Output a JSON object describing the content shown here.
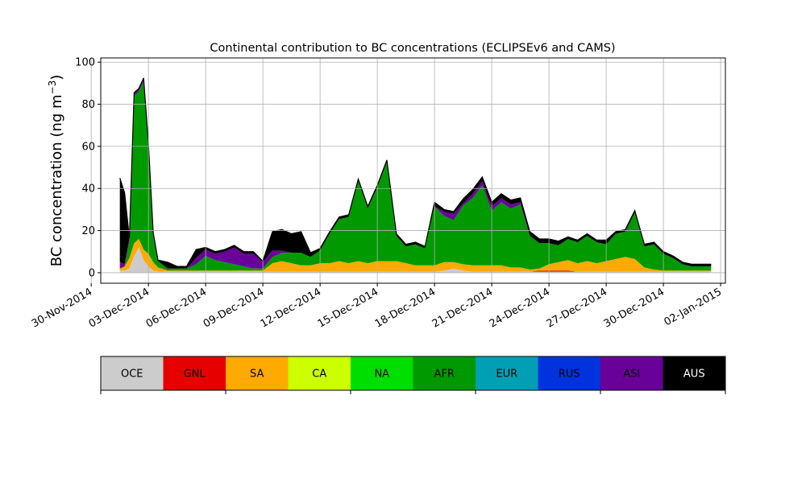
{
  "chart_data": {
    "type": "area",
    "stacked": true,
    "title": "Continental contribution to BC concentrations (ECLIPSEv6 and CAMS)",
    "xlabel": "",
    "ylabel": "BC concentration (ng m",
    "ylabel_sup": "−3",
    "ylabel_close": ")",
    "xlim": [
      "2014-11-30T12:00",
      "2015-01-02T06:00"
    ],
    "ylim": [
      -5,
      102
    ],
    "grid": true,
    "xticks": [
      {
        "date": "2014-11-30",
        "label": "30-Nov-2014"
      },
      {
        "date": "2014-12-03",
        "label": "03-Dec-2014"
      },
      {
        "date": "2014-12-06",
        "label": "06-Dec-2014"
      },
      {
        "date": "2014-12-09",
        "label": "09-Dec-2014"
      },
      {
        "date": "2014-12-12",
        "label": "12-Dec-2014"
      },
      {
        "date": "2014-12-15",
        "label": "15-Dec-2014"
      },
      {
        "date": "2014-12-18",
        "label": "18-Dec-2014"
      },
      {
        "date": "2014-12-21",
        "label": "21-Dec-2014"
      },
      {
        "date": "2014-12-24",
        "label": "24-Dec-2014"
      },
      {
        "date": "2014-12-27",
        "label": "27-Dec-2014"
      },
      {
        "date": "2014-12-30",
        "label": "30-Dec-2014"
      },
      {
        "date": "2015-01-02",
        "label": "02-Jan-2015"
      }
    ],
    "yticks": [
      0,
      20,
      40,
      60,
      80,
      100
    ],
    "x": [
      "2014-12-01T12:00",
      "2014-12-01T18:00",
      "2014-12-02T00:00",
      "2014-12-02T06:00",
      "2014-12-02T12:00",
      "2014-12-02T18:00",
      "2014-12-03T00:00",
      "2014-12-03T06:00",
      "2014-12-03T12:00",
      "2014-12-04T00:00",
      "2014-12-04T12:00",
      "2014-12-05T00:00",
      "2014-12-05T12:00",
      "2014-12-06T00:00",
      "2014-12-06T12:00",
      "2014-12-07T00:00",
      "2014-12-07T12:00",
      "2014-12-08T00:00",
      "2014-12-08T12:00",
      "2014-12-09T00:00",
      "2014-12-09T12:00",
      "2014-12-10T00:00",
      "2014-12-10T12:00",
      "2014-12-11T00:00",
      "2014-12-11T12:00",
      "2014-12-12T00:00",
      "2014-12-12T12:00",
      "2014-12-13T00:00",
      "2014-12-13T12:00",
      "2014-12-14T00:00",
      "2014-12-14T12:00",
      "2014-12-15T00:00",
      "2014-12-15T12:00",
      "2014-12-16T00:00",
      "2014-12-16T12:00",
      "2014-12-17T00:00",
      "2014-12-17T12:00",
      "2014-12-18T00:00",
      "2014-12-18T12:00",
      "2014-12-19T00:00",
      "2014-12-19T12:00",
      "2014-12-20T00:00",
      "2014-12-20T12:00",
      "2014-12-21T00:00",
      "2014-12-21T12:00",
      "2014-12-22T00:00",
      "2014-12-22T12:00",
      "2014-12-23T00:00",
      "2014-12-23T12:00",
      "2014-12-24T00:00",
      "2014-12-24T12:00",
      "2014-12-25T00:00",
      "2014-12-25T12:00",
      "2014-12-26T00:00",
      "2014-12-26T12:00",
      "2014-12-27T00:00",
      "2014-12-27T12:00",
      "2014-12-28T00:00",
      "2014-12-28T12:00",
      "2014-12-29T00:00",
      "2014-12-29T12:00",
      "2014-12-30T00:00",
      "2014-12-30T12:00",
      "2014-12-31T00:00",
      "2014-12-31T12:00",
      "2015-01-01T00:00",
      "2015-01-01T12:00"
    ],
    "series": [
      {
        "name": "OCE",
        "color": "#cccccc",
        "values": [
          1,
          1,
          2,
          8,
          12,
          6,
          3,
          1,
          0.5,
          0.5,
          0.5,
          0.5,
          0.5,
          0.5,
          0.5,
          0.5,
          0.5,
          0.5,
          0.5,
          0.5,
          0.5,
          0.5,
          0.5,
          0.5,
          0.5,
          0.5,
          0.5,
          0.5,
          0.5,
          0.5,
          0.5,
          0.5,
          0.5,
          0.5,
          0.5,
          0.5,
          0.5,
          0.5,
          1,
          2,
          1,
          0.5,
          0.5,
          0.5,
          0.5,
          0.5,
          0.5,
          0.5,
          0.5,
          0.5,
          0.5,
          0.5,
          0.5,
          0.5,
          0.5,
          0.5,
          0.5,
          0.5,
          0.5,
          0.5,
          0.5,
          0.5,
          0.5,
          0.5,
          0.5,
          0.5,
          0.5
        ]
      },
      {
        "name": "GNL",
        "color": "#e60000",
        "values": [
          0,
          0,
          0,
          0,
          0,
          0,
          0,
          0,
          0,
          0,
          0,
          0,
          0,
          0,
          0,
          0,
          0,
          0,
          0,
          0,
          0,
          0,
          0,
          0,
          0,
          0,
          0,
          0,
          0,
          0,
          0,
          0,
          0,
          0,
          0,
          0,
          0,
          0,
          0,
          0,
          0,
          0,
          0,
          0,
          0,
          0,
          0,
          0,
          0.5,
          0.5,
          0.5,
          0.5,
          0,
          0,
          0,
          0,
          0,
          0,
          0,
          0,
          0,
          0,
          0,
          0,
          0,
          0,
          0
        ]
      },
      {
        "name": "SA",
        "color": "#ffaa00",
        "values": [
          1,
          2,
          5,
          6,
          4,
          5,
          6,
          4,
          2,
          0.5,
          0.5,
          0.5,
          0.5,
          0.5,
          0.5,
          0.5,
          0.5,
          0.5,
          0.5,
          0.5,
          4,
          5,
          4,
          3,
          3,
          4,
          4,
          5,
          4,
          5,
          4,
          5,
          5,
          5,
          4,
          3,
          3,
          3,
          4,
          3,
          3,
          3,
          3,
          3,
          3,
          2,
          2,
          1,
          1,
          3,
          4,
          5,
          4,
          5,
          4,
          5,
          6,
          7,
          6,
          2,
          1,
          0.5,
          0.5,
          0.5,
          0.5,
          0.5,
          0.5
        ]
      },
      {
        "name": "CA",
        "color": "#ccff00",
        "values": [
          0,
          0,
          0,
          0,
          0,
          0,
          0,
          0,
          0,
          0,
          0,
          0,
          0,
          0,
          0,
          0,
          0,
          0,
          0,
          0,
          0,
          0,
          0,
          0,
          0,
          0,
          0,
          0,
          0,
          0,
          0,
          0,
          0,
          0,
          0,
          0,
          0,
          0,
          0,
          0,
          0,
          0,
          0,
          0,
          0,
          0,
          0,
          0,
          0,
          0,
          0,
          0,
          0,
          0,
          0,
          0,
          0,
          0,
          0,
          0,
          0,
          0,
          0,
          0,
          0,
          0,
          0
        ]
      },
      {
        "name": "NA",
        "color": "#00dd00",
        "values": [
          0,
          0,
          0,
          0,
          0,
          0,
          0,
          0,
          0,
          0,
          0,
          0,
          0,
          0,
          0,
          0,
          0,
          0,
          0,
          0,
          0,
          0,
          0,
          0,
          0,
          0,
          0,
          0,
          0,
          0,
          0,
          0,
          0,
          0,
          0,
          0,
          0,
          0,
          0,
          0,
          0,
          0,
          0,
          0,
          0,
          0,
          0,
          0,
          0,
          0,
          0,
          0,
          0,
          0,
          0,
          0,
          0,
          0,
          0,
          0,
          0,
          0,
          0,
          0,
          0,
          0,
          0
        ]
      },
      {
        "name": "AFR",
        "color": "#009900",
        "values": [
          0,
          0,
          8,
          70,
          70,
          80,
          50,
          12,
          3,
          1,
          1,
          1,
          3,
          7,
          5,
          4,
          3,
          2,
          1,
          1,
          3,
          4,
          5,
          6,
          4,
          6,
          14,
          20,
          22,
          38,
          26,
          35,
          47,
          12,
          8,
          10,
          8,
          28,
          22,
          20,
          28,
          32,
          38,
          26,
          30,
          28,
          30,
          16,
          12,
          10,
          8,
          10,
          10,
          12,
          10,
          8,
          12,
          12,
          22,
          10,
          12,
          8,
          6,
          3,
          2,
          2,
          2
        ]
      },
      {
        "name": "EUR",
        "color": "#00a0b4",
        "values": [
          0,
          0,
          0,
          0,
          0,
          0,
          0,
          0,
          0,
          0,
          0,
          0,
          0,
          0,
          0,
          0,
          0,
          0,
          0,
          0,
          0,
          0,
          0,
          0,
          0,
          0,
          0,
          0,
          0,
          0,
          0,
          0,
          0,
          0,
          0,
          0,
          0,
          0,
          0,
          0,
          0,
          0,
          0,
          0,
          0,
          0,
          0,
          0,
          0,
          0,
          0,
          0,
          0,
          0,
          0,
          0,
          0,
          0,
          0,
          0,
          0,
          0,
          0,
          0,
          0,
          0,
          0
        ]
      },
      {
        "name": "RUS",
        "color": "#0033dd",
        "values": [
          0,
          0,
          0,
          0,
          0,
          0,
          0,
          0,
          0,
          0,
          0,
          0,
          0,
          0,
          0,
          0,
          0,
          0,
          0,
          0,
          0,
          0,
          0,
          0,
          0,
          0,
          0,
          0,
          0,
          0,
          0,
          0,
          0,
          0,
          0,
          0,
          0,
          0,
          0,
          0,
          0,
          0,
          0,
          0,
          0,
          0,
          0,
          0,
          0,
          0,
          0,
          0,
          0,
          0,
          0,
          0,
          0,
          0,
          0,
          0,
          0,
          0,
          0,
          0,
          0,
          0,
          0
        ]
      },
      {
        "name": "ASI",
        "color": "#6a0099",
        "values": [
          3,
          1,
          1,
          1,
          1,
          1,
          1,
          1,
          0,
          0,
          0,
          0,
          3,
          3,
          3,
          5,
          8,
          6,
          7,
          3,
          3,
          1,
          0,
          0,
          0,
          0,
          0,
          0,
          0,
          0,
          0,
          0,
          0,
          0,
          0,
          0,
          0,
          0,
          2,
          3,
          1,
          2,
          2,
          2,
          2,
          2,
          1,
          0,
          0,
          0,
          0,
          0,
          0,
          0,
          0,
          0,
          0,
          0,
          0,
          0,
          0,
          0,
          0,
          0,
          0,
          0,
          0
        ]
      },
      {
        "name": "AUS",
        "color": "#000000",
        "values": [
          40,
          34,
          0.5,
          0.5,
          0.5,
          0.5,
          1,
          1,
          0.5,
          3,
          1,
          1,
          4,
          1,
          1,
          1,
          1,
          1,
          1,
          0.5,
          9,
          10,
          9,
          10,
          2,
          1,
          1,
          1,
          1,
          1,
          1,
          1,
          1,
          1,
          1,
          1,
          1,
          2,
          1,
          1,
          2,
          2,
          2,
          2,
          2,
          2,
          2,
          2,
          2,
          2,
          2,
          1,
          1,
          1,
          1,
          2,
          1,
          1,
          1,
          1,
          1,
          1,
          1,
          1,
          1,
          1,
          1
        ]
      }
    ],
    "legend": {
      "placement": "bottom-colorbar",
      "entries": [
        "OCE",
        "GNL",
        "SA",
        "CA",
        "NA",
        "AFR",
        "EUR",
        "RUS",
        "ASI",
        "AUS"
      ]
    }
  }
}
